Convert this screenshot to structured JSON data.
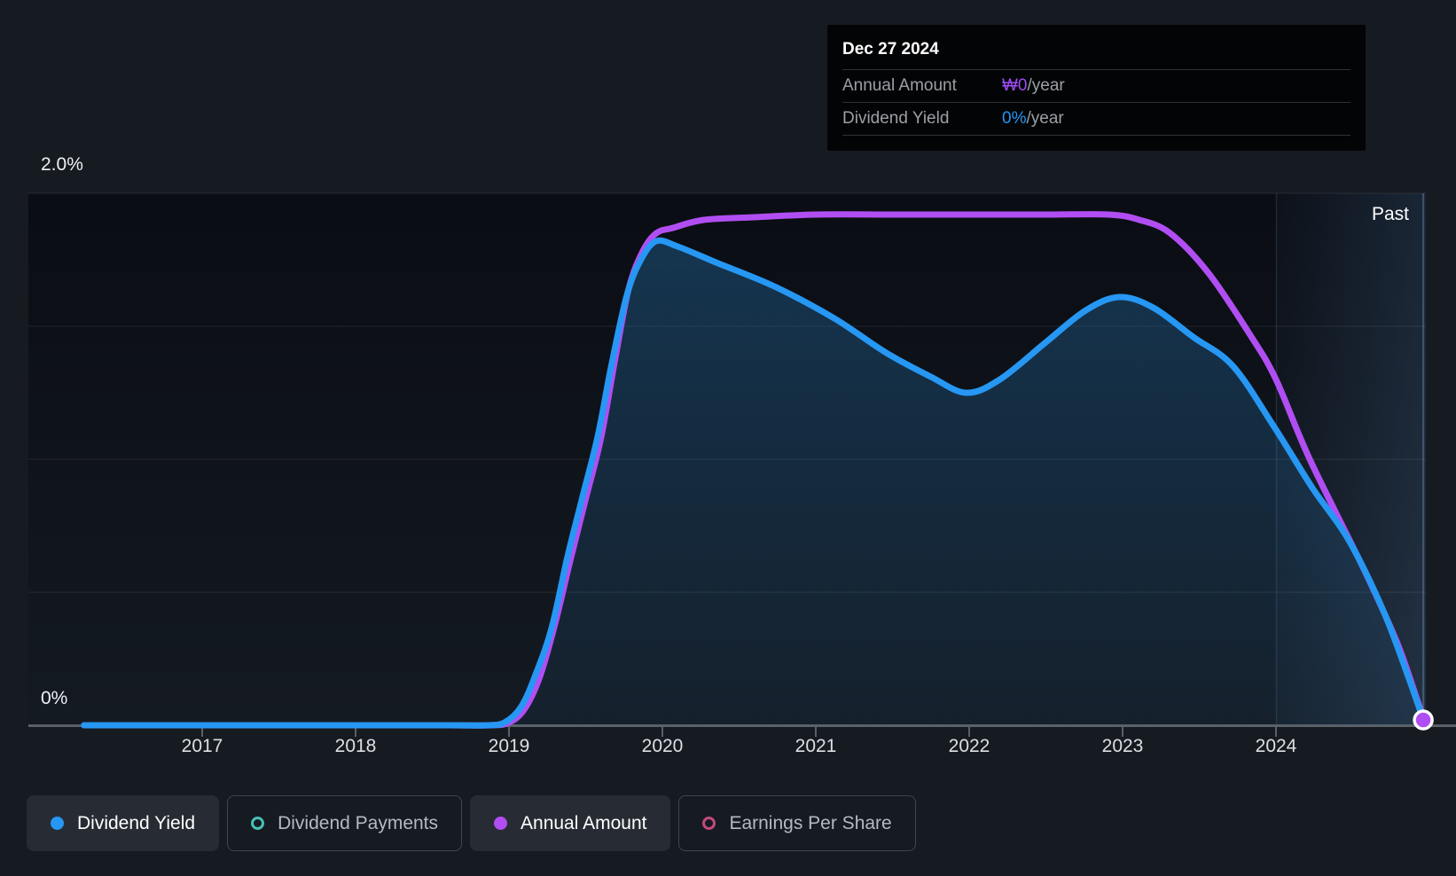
{
  "page_bg": "#161a21",
  "past_label": "Past",
  "y_axis": {
    "top_label": "2.0%",
    "bottom_label": "0%"
  },
  "x_axis": {
    "years": [
      "2017",
      "2018",
      "2019",
      "2020",
      "2021",
      "2022",
      "2023",
      "2024"
    ]
  },
  "tooltip": {
    "title": "Dec 27 2024",
    "rows": [
      {
        "label": "Annual Amount",
        "value": "₩0",
        "suffix": "/year",
        "value_color": "#9d4cf4"
      },
      {
        "label": "Dividend Yield",
        "value": "0%",
        "suffix": "/year",
        "value_color": "#2596f3"
      }
    ]
  },
  "legend": [
    {
      "label": "Dividend Yield",
      "color": "#2697f3",
      "marker": "filled",
      "active": true
    },
    {
      "label": "Dividend Payments",
      "color": "#46c1b4",
      "marker": "ring",
      "active": false
    },
    {
      "label": "Annual Amount",
      "color": "#b14ef3",
      "marker": "filled",
      "active": true
    },
    {
      "label": "Earnings Per Share",
      "color": "#c2497f",
      "marker": "ring",
      "active": false
    }
  ],
  "chart_data": {
    "type": "area",
    "x_range": [
      2016.2,
      2025.0
    ],
    "y_axis": {
      "min": 0,
      "max": 2.0,
      "unit": "%",
      "gridlines_pct": [
        0,
        0.5,
        1.0,
        1.5,
        2.0
      ],
      "grid": true
    },
    "x_ticks": [
      2017,
      2018,
      2019,
      2020,
      2021,
      2022,
      2023,
      2024
    ],
    "legend_position": "bottom-left",
    "past_band_start_year": 2024,
    "series": [
      {
        "name": "Dividend Yield",
        "color": "#2697f3",
        "fill": true,
        "note": "percent dividend yield, left axis 0%-2.0%",
        "points": [
          [
            2016.23,
            0
          ],
          [
            2017,
            0
          ],
          [
            2018,
            0
          ],
          [
            2018.6,
            0
          ],
          [
            2018.85,
            0
          ],
          [
            2018.97,
            0.01
          ],
          [
            2019.08,
            0.07
          ],
          [
            2019.18,
            0.2
          ],
          [
            2019.28,
            0.37
          ],
          [
            2019.38,
            0.63
          ],
          [
            2019.48,
            0.86
          ],
          [
            2019.58,
            1.09
          ],
          [
            2019.67,
            1.36
          ],
          [
            2019.77,
            1.62
          ],
          [
            2019.86,
            1.75
          ],
          [
            2019.96,
            1.82
          ],
          [
            2020.1,
            1.8
          ],
          [
            2020.35,
            1.74
          ],
          [
            2020.73,
            1.65
          ],
          [
            2021.12,
            1.53
          ],
          [
            2021.46,
            1.4
          ],
          [
            2021.75,
            1.31
          ],
          [
            2021.98,
            1.25
          ],
          [
            2022.2,
            1.3
          ],
          [
            2022.5,
            1.44
          ],
          [
            2022.76,
            1.56
          ],
          [
            2022.98,
            1.61
          ],
          [
            2023.2,
            1.57
          ],
          [
            2023.46,
            1.46
          ],
          [
            2023.72,
            1.35
          ],
          [
            2023.99,
            1.12
          ],
          [
            2024.24,
            0.89
          ],
          [
            2024.47,
            0.7
          ],
          [
            2024.7,
            0.43
          ],
          [
            2024.87,
            0.17
          ],
          [
            2024.96,
            0.02
          ]
        ]
      },
      {
        "name": "Annual Amount",
        "color": "#b14ef3",
        "fill": false,
        "note": "₩ amount plotted on unlabeled scale; values below are axis-relative as rendered",
        "points": [
          [
            2016.23,
            0
          ],
          [
            2017,
            0
          ],
          [
            2018,
            0
          ],
          [
            2018.6,
            0
          ],
          [
            2018.88,
            0
          ],
          [
            2019.0,
            0.01
          ],
          [
            2019.1,
            0.06
          ],
          [
            2019.2,
            0.18
          ],
          [
            2019.3,
            0.38
          ],
          [
            2019.4,
            0.62
          ],
          [
            2019.5,
            0.85
          ],
          [
            2019.6,
            1.08
          ],
          [
            2019.69,
            1.37
          ],
          [
            2019.78,
            1.64
          ],
          [
            2019.87,
            1.78
          ],
          [
            2019.96,
            1.85
          ],
          [
            2020.07,
            1.87
          ],
          [
            2020.27,
            1.9
          ],
          [
            2020.6,
            1.91
          ],
          [
            2021,
            1.92
          ],
          [
            2021.5,
            1.92
          ],
          [
            2022,
            1.92
          ],
          [
            2022.5,
            1.92
          ],
          [
            2022.91,
            1.92
          ],
          [
            2023.11,
            1.9
          ],
          [
            2023.31,
            1.85
          ],
          [
            2023.56,
            1.7
          ],
          [
            2023.84,
            1.46
          ],
          [
            2024.0,
            1.3
          ],
          [
            2024.22,
            1.0
          ],
          [
            2024.57,
            0.59
          ],
          [
            2024.79,
            0.31
          ],
          [
            2024.93,
            0.08
          ],
          [
            2024.97,
            0.02
          ]
        ]
      }
    ],
    "end_marker": {
      "year": 2024.96,
      "pct": 0.02,
      "color": "#b14ef3",
      "ring": "#ffffff"
    }
  }
}
